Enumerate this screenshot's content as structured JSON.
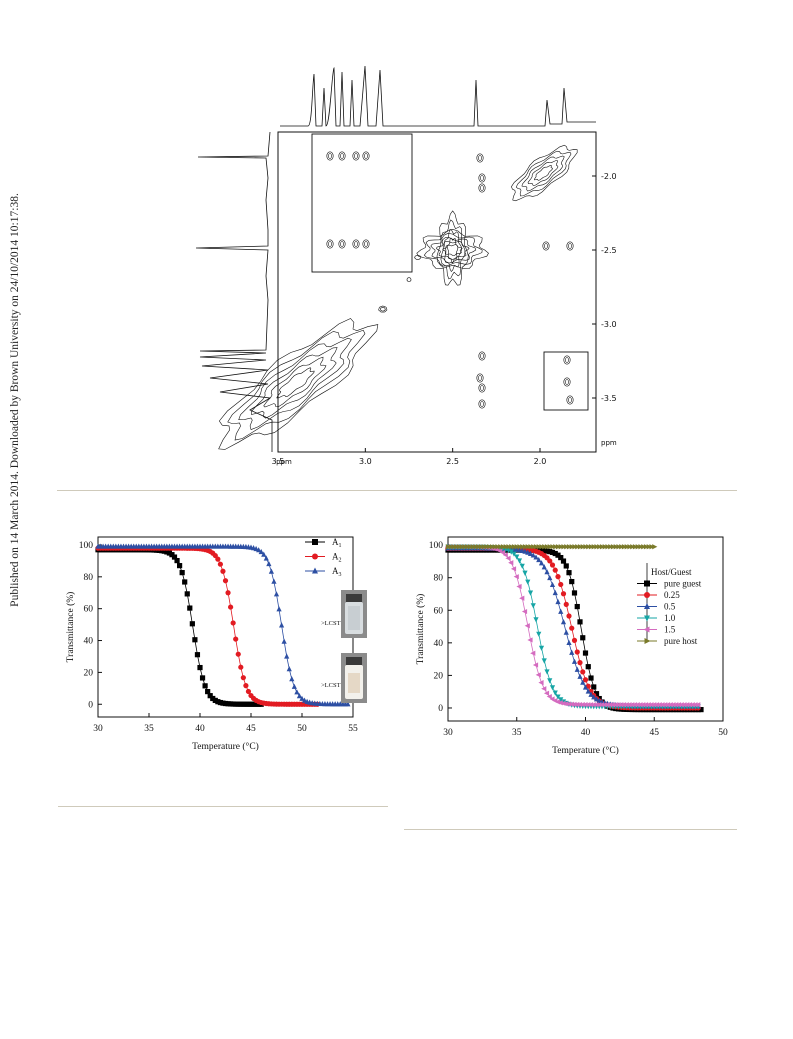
{
  "side_text": "Published on 14 March 2014. Downloaded by Brown University on 24/10/2014 10:17:38.",
  "nmr": {
    "x_unit": "ppm",
    "y_unit": "ppm",
    "x_ticks": [
      "3.5",
      "3.0",
      "2.5",
      "2.0"
    ],
    "y_ticks": [
      "2.0",
      "2.5",
      "3.0",
      "3.5"
    ]
  },
  "chart_data": [
    {
      "type": "line",
      "xlabel": "Temperature (°C)",
      "ylabel": "Transmittance (%)",
      "xlim": [
        30,
        55
      ],
      "ylim": [
        -8,
        105
      ],
      "x_ticks": [
        30,
        35,
        40,
        45,
        50,
        55
      ],
      "y_ticks": [
        0,
        20,
        40,
        60,
        80,
        100
      ],
      "legend_placement": "top-right",
      "series": [
        {
          "name": "A1",
          "color": "#000000",
          "marker": "square",
          "x_start": 30,
          "x_end": 46,
          "step": 0.25,
          "y_high": 97,
          "y_low": 0,
          "midpoint": 39.3,
          "width": 0.6
        },
        {
          "name": "A2",
          "color": "#e21b22",
          "marker": "circle",
          "x_start": 30,
          "x_end": 51.5,
          "step": 0.25,
          "y_high": 98,
          "y_low": 0,
          "midpoint": 43.3,
          "width": 0.6
        },
        {
          "name": "A3",
          "color": "#2d4fa3",
          "marker": "triangle-up",
          "x_start": 30,
          "x_end": 54.5,
          "step": 0.25,
          "y_high": 99,
          "y_low": 0,
          "midpoint": 48.0,
          "width": 0.6
        }
      ],
      "photo_labels": [
        ">LCST",
        ">LCST"
      ]
    },
    {
      "type": "line",
      "xlabel": "Temperature (°C)",
      "ylabel": "Transmittance (%)",
      "xlim": [
        30,
        50
      ],
      "ylim": [
        -8,
        105
      ],
      "x_ticks": [
        30,
        35,
        40,
        45,
        50
      ],
      "y_ticks": [
        0,
        20,
        40,
        60,
        80,
        100
      ],
      "legend_title": "Host/Guest",
      "legend_placement": "right",
      "series": [
        {
          "name": "pure guest",
          "color": "#000000",
          "marker": "square",
          "x_start": 30,
          "x_end": 48.4,
          "step": 0.2,
          "y_high": 97,
          "y_low": -1,
          "midpoint": 39.7,
          "width": 0.5
        },
        {
          "name": "0.25",
          "color": "#e21b22",
          "marker": "circle",
          "x_start": 30,
          "x_end": 48.2,
          "step": 0.2,
          "y_high": 98,
          "y_low": 0,
          "midpoint": 39.0,
          "width": 0.65
        },
        {
          "name": "0.5",
          "color": "#2d4fa3",
          "marker": "triangle-up",
          "x_start": 30,
          "x_end": 48.2,
          "step": 0.2,
          "y_high": 98,
          "y_low": 1,
          "midpoint": 38.5,
          "width": 0.75
        },
        {
          "name": "1.0",
          "color": "#16a5a5",
          "marker": "triangle-down",
          "x_start": 30,
          "x_end": 48.2,
          "step": 0.2,
          "y_high": 99,
          "y_low": 1,
          "midpoint": 36.5,
          "width": 0.55
        },
        {
          "name": "1.5",
          "color": "#d46bbf",
          "marker": "triangle-left",
          "x_start": 30,
          "x_end": 48.2,
          "step": 0.2,
          "y_high": 99,
          "y_low": 2,
          "midpoint": 35.8,
          "width": 0.55
        },
        {
          "name": "pure host",
          "color": "#7a7a2a",
          "marker": "triangle-right",
          "x_start": 30,
          "x_end": 45,
          "step": 0.2,
          "y_high": 99,
          "y_low": 99,
          "midpoint": 40,
          "width": 1
        }
      ]
    }
  ]
}
